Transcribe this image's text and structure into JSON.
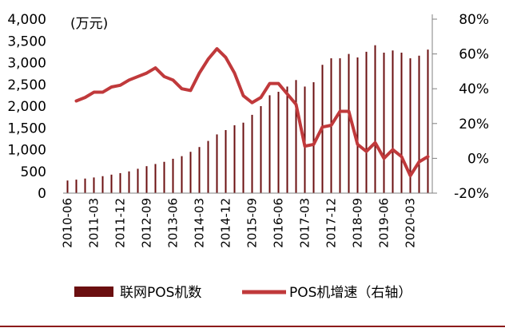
{
  "chart_data": {
    "type": "bar+line",
    "unit_label": "(万元)",
    "colors": {
      "bars": "#6b0f10",
      "line": "#c0393b",
      "axis": "#808080",
      "bottom_rule": "#8b1a1a"
    },
    "left_axis": {
      "min": 0,
      "max": 4000,
      "ticks": [
        0,
        500,
        1000,
        1500,
        2000,
        2500,
        3000,
        3500,
        4000
      ],
      "tick_labels": [
        "0",
        "500",
        "1,000",
        "1,500",
        "2,000",
        "2,500",
        "3,000",
        "3,500",
        "4,000"
      ]
    },
    "right_axis": {
      "min": -20,
      "max": 80,
      "ticks": [
        -20,
        0,
        20,
        40,
        60,
        80
      ],
      "tick_labels": [
        "-20%",
        "0%",
        "20%",
        "40%",
        "60%",
        "80%"
      ]
    },
    "x_labels": [
      "2010-06",
      "2011-03",
      "2011-12",
      "2012-09",
      "2013-06",
      "2014-03",
      "2014-12",
      "2015-09",
      "2016-06",
      "2017-03",
      "2017-12",
      "2018-09",
      "2019-06",
      "2020-03"
    ],
    "x_label_interval": 3,
    "series": [
      {
        "name": "联网POS机数",
        "type": "bar",
        "axis": "left",
        "values": [
          290,
          310,
          335,
          360,
          390,
          425,
          460,
          500,
          560,
          620,
          670,
          720,
          790,
          850,
          950,
          1060,
          1200,
          1350,
          1450,
          1560,
          1620,
          1800,
          2000,
          2250,
          2330,
          2450,
          2600,
          2450,
          2550,
          2950,
          3100,
          3100,
          3200,
          3120,
          3250,
          3400,
          3230,
          3280,
          3230,
          3100,
          3160,
          3300
        ]
      },
      {
        "name": "POS机增速（右轴）",
        "type": "line",
        "axis": "right",
        "values": [
          33,
          35,
          38,
          38,
          41,
          42,
          45,
          47,
          49,
          52,
          47,
          45,
          40,
          39,
          49,
          57,
          63,
          58,
          49,
          36,
          32,
          35,
          43,
          43,
          37,
          31,
          7,
          8,
          18,
          19,
          27,
          27,
          8,
          4,
          9,
          0,
          5,
          1,
          -10,
          -2,
          1
        ]
      }
    ],
    "legend": {
      "position": "bottom",
      "items": [
        {
          "label": "联网POS机数",
          "symbol": "bar"
        },
        {
          "label": "POS机增速（右轴）",
          "symbol": "line"
        }
      ]
    }
  }
}
